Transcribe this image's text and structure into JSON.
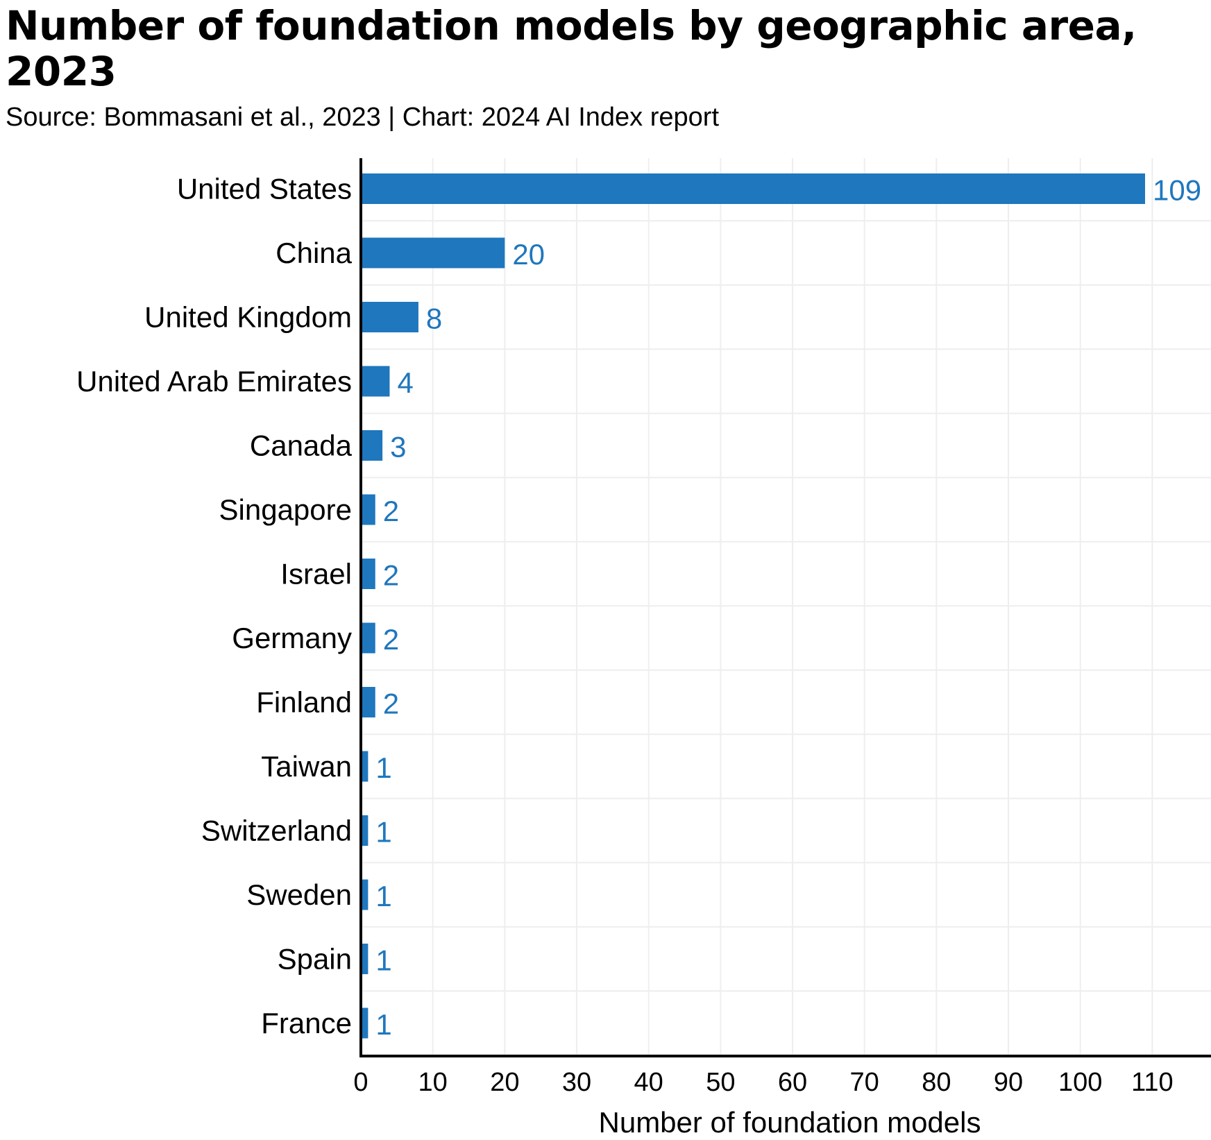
{
  "chart_data": {
    "type": "bar",
    "orientation": "horizontal",
    "title": "Number of foundation models by geographic area, 2023",
    "subtitle": "Source: Bommasani et al., 2023 | Chart: 2024 AI Index report",
    "xlabel": "Number of foundation models",
    "ylabel": "",
    "categories": [
      "United States",
      "China",
      "United Kingdom",
      "United Arab Emirates",
      "Canada",
      "Singapore",
      "Israel",
      "Germany",
      "Finland",
      "Taiwan",
      "Switzerland",
      "Sweden",
      "Spain",
      "France"
    ],
    "values": [
      109,
      20,
      8,
      4,
      3,
      2,
      2,
      2,
      2,
      1,
      1,
      1,
      1,
      1
    ],
    "xlim": [
      0,
      118
    ],
    "xticks": [
      0,
      10,
      20,
      30,
      40,
      50,
      60,
      70,
      80,
      90,
      100,
      110
    ],
    "grid": true,
    "data_labels": true,
    "legend": "none"
  },
  "colors": {
    "bar": "#1f77bd",
    "value_label": "#1f77bd",
    "grid": "#eeeeee",
    "axis": "#000000"
  }
}
